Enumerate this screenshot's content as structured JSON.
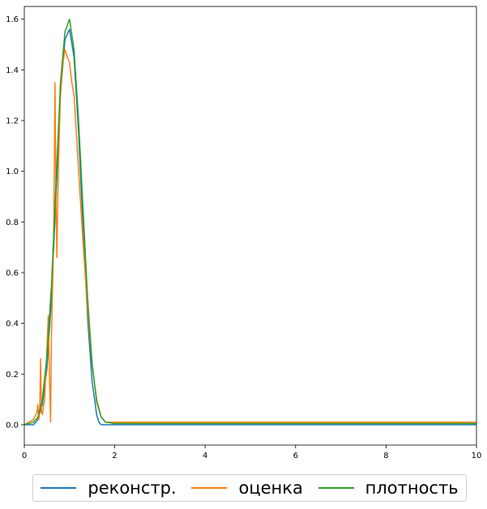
{
  "chart_data": {
    "type": "line",
    "xlim": [
      0,
      10
    ],
    "ylim": [
      -0.08,
      1.65
    ],
    "x_ticks": [
      0,
      2,
      4,
      6,
      8,
      10
    ],
    "y_ticks": [
      0.0,
      0.2,
      0.4,
      0.6,
      0.8,
      1.0,
      1.2,
      1.4,
      1.6
    ],
    "x_tick_labels": [
      "0",
      "2",
      "4",
      "6",
      "8",
      "10"
    ],
    "y_tick_labels": [
      "0.0",
      "0.2",
      "0.4",
      "0.6",
      "0.8",
      "1.0",
      "1.2",
      "1.4",
      "1.6"
    ],
    "grid": false,
    "legend_position": "below",
    "series": [
      {
        "name": "реконстр.",
        "color": "#1f77b4",
        "x": [
          0,
          0.2,
          0.3,
          0.4,
          0.5,
          0.6,
          0.7,
          0.8,
          0.9,
          1.0,
          1.1,
          1.2,
          1.3,
          1.4,
          1.5,
          1.6,
          1.65,
          1.7,
          2.0,
          4.0,
          6.0,
          8.0,
          10.0
        ],
        "y": [
          0.0,
          0.0,
          0.02,
          0.08,
          0.22,
          0.5,
          0.9,
          1.3,
          1.52,
          1.56,
          1.45,
          1.15,
          0.78,
          0.42,
          0.17,
          0.04,
          0.01,
          0.0,
          0.0,
          0.0,
          0.0,
          0.0,
          0.0
        ]
      },
      {
        "name": "оценка",
        "color": "#ff7f0e",
        "x": [
          0,
          0.2,
          0.28,
          0.3,
          0.32,
          0.34,
          0.36,
          0.38,
          0.4,
          0.45,
          0.5,
          0.53,
          0.55,
          0.58,
          0.6,
          0.62,
          0.65,
          0.68,
          0.7,
          0.72,
          0.74,
          0.76,
          0.8,
          0.85,
          0.9,
          0.95,
          1.0,
          1.05,
          1.1,
          1.2,
          1.3,
          1.4,
          1.5,
          1.6,
          1.7,
          1.8,
          1.9,
          2.0,
          4.0,
          6.0,
          8.0,
          10.0
        ],
        "y": [
          0.0,
          0.02,
          0.05,
          0.08,
          0.02,
          0.05,
          0.26,
          0.05,
          0.04,
          0.1,
          0.3,
          0.43,
          0.25,
          0.01,
          0.35,
          0.5,
          0.75,
          1.35,
          0.88,
          0.66,
          0.9,
          1.05,
          1.3,
          1.42,
          1.48,
          1.45,
          1.43,
          1.35,
          1.3,
          1.0,
          0.72,
          0.45,
          0.24,
          0.1,
          0.03,
          0.01,
          0.01,
          0.01,
          0.01,
          0.01,
          0.01,
          0.01
        ]
      },
      {
        "name": "плотность",
        "color": "#2ca02c",
        "x": [
          0,
          0.2,
          0.3,
          0.4,
          0.5,
          0.6,
          0.7,
          0.8,
          0.9,
          1.0,
          1.1,
          1.2,
          1.3,
          1.4,
          1.5,
          1.6,
          1.7,
          1.8,
          2.0,
          4.0,
          6.0,
          8.0,
          10.0
        ],
        "y": [
          0.0,
          0.01,
          0.03,
          0.1,
          0.27,
          0.55,
          0.95,
          1.35,
          1.55,
          1.6,
          1.48,
          1.2,
          0.85,
          0.5,
          0.24,
          0.09,
          0.03,
          0.01,
          0.005,
          0.005,
          0.005,
          0.005,
          0.005
        ]
      }
    ]
  }
}
